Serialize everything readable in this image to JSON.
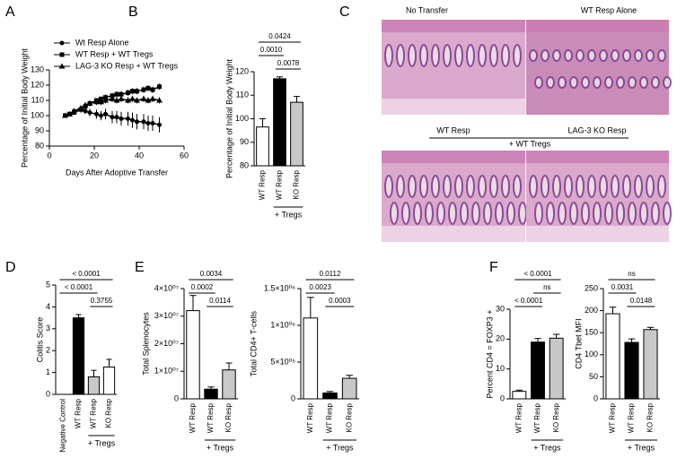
{
  "chart_data": [
    {
      "label": "A",
      "type": "line",
      "xlabel": "Days After Adoptive Transfer",
      "ylabel": "Percentage of Initial Body Weight",
      "xlim": [
        0,
        60
      ],
      "xticks": [
        0,
        20,
        40,
        60
      ],
      "ylim": [
        80,
        130
      ],
      "yticks": [
        80,
        90,
        100,
        110,
        120,
        130
      ],
      "x": [
        7,
        9,
        11,
        14,
        16,
        18,
        21,
        23,
        25,
        28,
        30,
        32,
        35,
        37,
        39,
        42,
        44,
        46,
        49
      ],
      "series": [
        {
          "name": "Wt Resp Alone",
          "marker": "circle",
          "color": "#000000",
          "values": [
            100,
            101,
            103,
            104,
            103,
            102,
            101,
            100,
            101,
            99,
            99,
            98,
            98,
            97,
            96,
            96,
            95,
            95,
            94
          ],
          "errors": [
            1,
            1,
            1.5,
            2,
            2,
            2.5,
            3,
            3,
            3.5,
            4,
            4,
            4.5,
            4.5,
            5,
            5,
            5,
            5,
            5,
            5
          ]
        },
        {
          "name": "WT Resp + WT Tregs",
          "marker": "square",
          "color": "#000000",
          "values": [
            100,
            101,
            102,
            104,
            106,
            108,
            110,
            111,
            112,
            113,
            114,
            114,
            115,
            116,
            116,
            117,
            118,
            117,
            119
          ],
          "errors": [
            0.5,
            1,
            1,
            1,
            1.5,
            1.5,
            1.5,
            1.5,
            2,
            2,
            2,
            2,
            2,
            2,
            2,
            2,
            2,
            2,
            2
          ]
        },
        {
          "name": "LAG-3 KO Resp + WT Tregs",
          "marker": "triangle",
          "color": "#000000",
          "values": [
            100,
            101,
            103,
            105,
            107,
            108,
            109,
            109,
            110,
            111,
            110,
            111,
            110,
            111,
            110,
            111,
            110,
            111,
            110
          ],
          "errors": [
            0.5,
            1,
            1,
            1.5,
            1.5,
            2,
            2,
            2,
            2,
            2,
            2,
            2,
            2,
            2,
            2,
            2,
            2,
            2,
            2
          ]
        }
      ]
    },
    {
      "label": "B",
      "type": "bar",
      "ylabel": "Percentage of Initial Body Weight",
      "categories": [
        "WT Resp",
        "WT Resp",
        "KO Resp"
      ],
      "values": [
        96.5,
        117,
        107
      ],
      "errors": [
        3.5,
        0.8,
        2.5
      ],
      "colors": [
        "#ffffff",
        "#000000",
        "#c8c8c8"
      ],
      "ylim": [
        80,
        120
      ],
      "yticks": [
        80,
        90,
        100,
        110,
        120
      ],
      "comparisons": [
        {
          "label": "0.0424",
          "between": [
            0,
            2
          ]
        },
        {
          "label": "0.0010",
          "between": [
            0,
            1
          ]
        },
        {
          "label": "0.0078",
          "between": [
            1,
            2
          ]
        }
      ],
      "group_label": "+ Tregs",
      "group": [
        1,
        2
      ]
    },
    {
      "label": "C",
      "type": "image",
      "titles": [
        "No Transfer",
        "WT Resp Alone",
        "WT Resp",
        "LAG-3 KO Resp"
      ],
      "group_label": "+ WT Tregs"
    },
    {
      "label": "D",
      "type": "bar",
      "ylabel": "Colitis Score",
      "categories": [
        "Negative Control",
        "WT Resp",
        "WT Resp",
        "KO Resp"
      ],
      "values": [
        0,
        3.5,
        0.8,
        1.25
      ],
      "errors": [
        0,
        0.15,
        0.3,
        0.35
      ],
      "colors": [
        "#ffffff",
        "#000000",
        "#c8c8c8",
        "#ffffff"
      ],
      "ylim": [
        0,
        5
      ],
      "yticks": [
        0,
        1,
        2,
        3,
        4,
        5
      ],
      "comparisons": [
        {
          "label": "< 0.0001",
          "between": [
            0,
            3
          ]
        },
        {
          "label": "< 0.0001",
          "between": [
            0,
            2
          ]
        },
        {
          "label": "0.3755",
          "between": [
            2,
            3
          ]
        }
      ],
      "group_label": "+ Tregs",
      "group": [
        2,
        3
      ]
    },
    {
      "label": "E",
      "type": "bar",
      "ylabel": "Total Splenocytes",
      "categories": [
        "WT Resp",
        "WT Resp",
        "KO Resp"
      ],
      "values": [
        32000000,
        3500000,
        10500000
      ],
      "errors": [
        5500000,
        800000,
        2500000
      ],
      "colors": [
        "#ffffff",
        "#000000",
        "#c8c8c8"
      ],
      "ylim": [
        0,
        40000000
      ],
      "yticks": [
        0,
        {
          "value": 10000000,
          "label": "1×10⁰⁷"
        },
        {
          "value": 20000000,
          "label": "2×10⁰⁷"
        },
        {
          "value": 30000000,
          "label": "3×10⁰⁷"
        },
        {
          "value": 40000000,
          "label": "4×10⁰⁷"
        }
      ],
      "comparisons": [
        {
          "label": "0.0034",
          "between": [
            0,
            2
          ]
        },
        {
          "label": "0.0002",
          "between": [
            0,
            1
          ]
        },
        {
          "label": "0.0114",
          "between": [
            1,
            2
          ]
        }
      ],
      "group_label": "+ Tregs",
      "group": [
        1,
        2
      ]
    },
    {
      "type": "bar",
      "ylabel": "Total CD4+ T-cells",
      "categories": [
        "WT Resp",
        "WT Resp",
        "KO Resp"
      ],
      "values": [
        1100000,
        80000,
        280000
      ],
      "errors": [
        280000,
        20000,
        40000
      ],
      "colors": [
        "#ffffff",
        "#000000",
        "#c8c8c8"
      ],
      "ylim": [
        0,
        1500000
      ],
      "yticks": [
        0,
        {
          "value": 500000,
          "label": "5×10⁰⁵"
        },
        {
          "value": 1000000,
          "label": "1×10⁰⁶"
        },
        {
          "value": 1500000,
          "label": "1.5×10⁰⁶"
        }
      ],
      "comparisons": [
        {
          "label": "0.0112",
          "between": [
            0,
            2
          ]
        },
        {
          "label": "0.0023",
          "between": [
            0,
            1
          ]
        },
        {
          "label": "0.0003",
          "between": [
            1,
            2
          ]
        }
      ],
      "group_label": "+ Tregs",
      "group": [
        1,
        2
      ]
    },
    {
      "label": "F",
      "type": "bar",
      "ylabel": "Percent CD4 = FOXP3 +",
      "categories": [
        "WT Resp",
        "WT Resp",
        "KO Resp"
      ],
      "values": [
        2.5,
        19,
        20.3
      ],
      "errors": [
        0.4,
        1.2,
        1.3
      ],
      "colors": [
        "#ffffff",
        "#000000",
        "#c8c8c8"
      ],
      "ylim": [
        0,
        30
      ],
      "yticks": [
        0,
        10,
        20,
        30
      ],
      "comparisons": [
        {
          "label": "< 0.0001",
          "between": [
            0,
            2
          ]
        },
        {
          "label": "ns",
          "between": [
            1,
            2
          ]
        },
        {
          "label": "< 0.0001",
          "between": [
            0,
            1
          ]
        }
      ],
      "group_label": "+ Tregs",
      "group": [
        1,
        2
      ]
    },
    {
      "type": "bar",
      "ylabel": "CD4 Tbet MFI",
      "categories": [
        "WT Resp",
        "WT Resp",
        "KO Resp"
      ],
      "values": [
        193,
        128,
        157
      ],
      "errors": [
        15,
        8,
        5
      ],
      "colors": [
        "#ffffff",
        "#000000",
        "#c8c8c8"
      ],
      "ylim": [
        0,
        250
      ],
      "yticks": [
        0,
        50,
        100,
        150,
        200,
        250
      ],
      "comparisons": [
        {
          "label": "ns",
          "between": [
            0,
            2
          ]
        },
        {
          "label": "0.0031",
          "between": [
            0,
            1
          ]
        },
        {
          "label": "0.0148",
          "between": [
            1,
            2
          ]
        }
      ],
      "group_label": "+ Tregs",
      "group": [
        1,
        2
      ]
    }
  ]
}
